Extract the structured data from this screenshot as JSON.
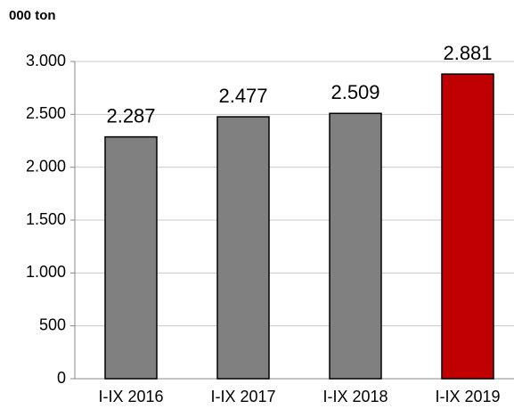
{
  "chart_data": {
    "type": "bar",
    "title": "000 ton",
    "categories": [
      "I-IX 2016",
      "I-IX 2017",
      "I-IX 2018",
      "I-IX 2019"
    ],
    "values": [
      2287,
      2477,
      2509,
      2881
    ],
    "value_labels": [
      "2.287",
      "2.477",
      "2.509",
      "2.881"
    ],
    "colors": [
      "#808080",
      "#808080",
      "#808080",
      "#c00000"
    ],
    "ylim": [
      0,
      3000
    ],
    "yticks": [
      0,
      500,
      {
        "value": 1000,
        "label": "1.000"
      },
      {
        "value": 1500,
        "label": "1.500"
      },
      {
        "value": 2000,
        "label": "2.000"
      },
      {
        "value": 2500,
        "label": "2.500"
      },
      {
        "value": 3000,
        "label": "3.000"
      }
    ],
    "grid": true
  }
}
